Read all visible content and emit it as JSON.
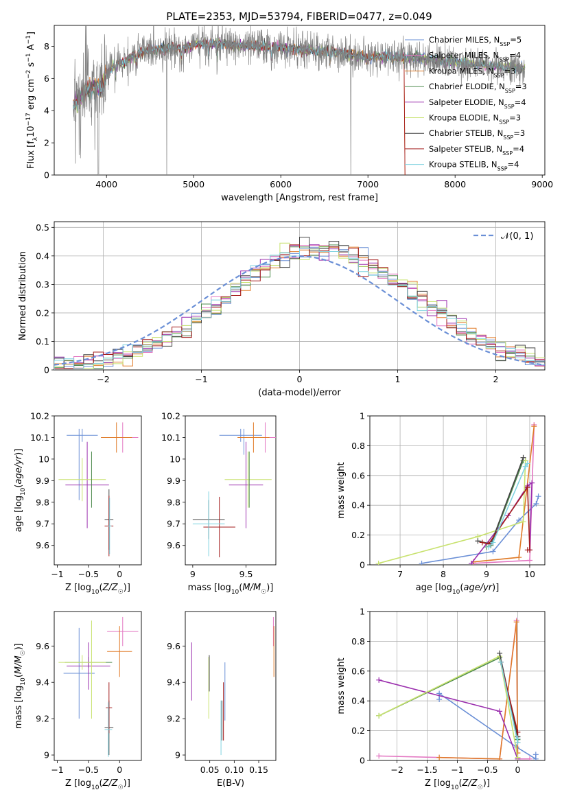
{
  "figure_title": "PLATE=2353, MJD=53794, FIBERID=0477, z=0.049",
  "colors": {
    "chabrier_miles": "#6a8fd6",
    "salpeter_miles": "#e377c2",
    "kroupa_miles": "#e07b28",
    "chabrier_elodie": "#4d8a4d",
    "salpeter_elodie": "#9b2fae",
    "kroupa_elodie": "#c8e26e",
    "chabrier_stelib": "#444444",
    "salpeter_stelib": "#a31b1b",
    "kroupa_stelib": "#7fd3e0",
    "data": "#808080"
  },
  "chart_data": [
    {
      "id": "spectrum",
      "type": "line",
      "title": "",
      "xlabel": "wavelength [Angstrom, rest frame]",
      "ylabel": "Flux [f_λ10^-17 erg cm^-2 s^-1 A^-1]",
      "xlim": [
        3400,
        9030
      ],
      "ylim": [
        0,
        9.3
      ],
      "xticks": [
        4000,
        5000,
        6000,
        7000,
        8000,
        9000
      ],
      "yticks": [
        0,
        2,
        4,
        6,
        8
      ],
      "legend_position": "right",
      "legend": [
        {
          "model": "Chabrier MILES",
          "nssp": "5",
          "color_key": "chabrier_miles"
        },
        {
          "model": "Salpeter MILES",
          "nssp": "4",
          "color_key": "salpeter_miles"
        },
        {
          "model": "Kroupa MILES",
          "nssp": "3",
          "color_key": "kroupa_miles"
        },
        {
          "model": "Chabrier ELODIE",
          "nssp": "3",
          "color_key": "chabrier_elodie"
        },
        {
          "model": "Salpeter ELODIE",
          "nssp": "4",
          "color_key": "salpeter_elodie"
        },
        {
          "model": "Kroupa ELODIE",
          "nssp": "3",
          "color_key": "kroupa_elodie"
        },
        {
          "model": "Chabrier STELIB",
          "nssp": "3",
          "color_key": "chabrier_stelib"
        },
        {
          "model": "Salpeter STELIB",
          "nssp": "4",
          "color_key": "salpeter_stelib"
        },
        {
          "model": "Kroupa STELIB",
          "nssp": "4",
          "color_key": "kroupa_stelib"
        }
      ],
      "continuum": {
        "wavelength": [
          3620,
          3700,
          3800,
          3900,
          4000,
          4100,
          4200,
          4300,
          4400,
          4500,
          4600,
          4700,
          4800,
          4900,
          5000,
          5200,
          5400,
          5600,
          5800,
          6000,
          6200,
          6400,
          6600,
          6800,
          7000,
          7200,
          7400,
          7600,
          7800,
          8000,
          8200,
          8400,
          8600,
          8800
        ],
        "flux": [
          4.3,
          4.9,
          5.4,
          5.4,
          6.3,
          6.9,
          7.0,
          7.4,
          7.6,
          7.8,
          7.8,
          7.9,
          7.9,
          7.9,
          8.1,
          8.2,
          8.1,
          8.0,
          8.0,
          7.9,
          7.8,
          7.7,
          7.7,
          7.5,
          7.3,
          7.4,
          7.3,
          7.3,
          7.1,
          7.0,
          6.9,
          6.8,
          6.7,
          6.6
        ]
      }
    },
    {
      "id": "residuals",
      "type": "line",
      "title": "",
      "xlabel": "(data-model)/error",
      "ylabel": "Normed distribution",
      "xlim": [
        -2.5,
        2.5
      ],
      "ylim": [
        0,
        0.52
      ],
      "xticks": [
        -2,
        -1,
        0,
        1,
        2
      ],
      "yticks": [
        0.0,
        0.1,
        0.2,
        0.3,
        0.4,
        0.5
      ],
      "grid": true,
      "legend_position": "top-right",
      "gaussian_label": "𝒩(0, 1)",
      "gaussian_sigma": 1.0
    },
    {
      "id": "age_vs_Z",
      "type": "scatter",
      "xlabel": "Z [log10(Z/Z☉)]",
      "ylabel": "age [log10(age/yr)]",
      "xlim": [
        -1.05,
        0.35
      ],
      "ylim": [
        9.51,
        10.2
      ],
      "xticks": [
        -1.0,
        -0.5,
        0.0
      ],
      "yticks": [
        9.6,
        9.7,
        9.8,
        9.9,
        10.0,
        10.1,
        10.2
      ],
      "points": [
        {
          "x": -0.6,
          "xerr": 0.25,
          "y": 10.11,
          "yerr": 0.03,
          "color_key": "chabrier_miles"
        },
        {
          "x": -0.65,
          "yerr_lo": 0.3,
          "yerr_hi": 0.03,
          "y": 10.11,
          "color_key": "chabrier_miles"
        },
        {
          "x": 0.05,
          "xerr": 0.25,
          "y": 10.1,
          "yerr": 0.07,
          "color_key": "salpeter_miles"
        },
        {
          "x": -0.05,
          "xerr": 0.25,
          "y": 10.1,
          "yerr": 0.07,
          "color_key": "kroupa_miles"
        },
        {
          "x": -0.52,
          "xerr": 0.35,
          "y": 9.88,
          "yerr": 0.2,
          "color_key": "salpeter_elodie"
        },
        {
          "x": -0.6,
          "xerr": 0.38,
          "y": 9.905,
          "yerr": 0.1,
          "color_key": "kroupa_elodie"
        },
        {
          "x": -0.45,
          "y": 9.905,
          "yerr": 0.13,
          "color_key": "chabrier_elodie"
        },
        {
          "x": -0.17,
          "xerr": 0.07,
          "y": 9.72,
          "yerr": 0.14,
          "color_key": "chabrier_stelib"
        },
        {
          "x": -0.17,
          "xerr": 0.07,
          "y": 9.69,
          "yerr": 0.14,
          "color_key": "salpeter_stelib"
        },
        {
          "x": -0.16,
          "xerr": 0.03,
          "y": 9.69,
          "yerr": 0.13,
          "color_key": "kroupa_stelib"
        }
      ]
    },
    {
      "id": "age_vs_mass",
      "type": "scatter",
      "xlabel": "mass [log10(M/M☉)]",
      "ylabel": "",
      "xlim": [
        8.93,
        9.78
      ],
      "ylim": [
        9.51,
        10.2
      ],
      "xticks": [
        9.0,
        9.5
      ],
      "yticks": [
        9.6,
        9.7,
        9.8,
        9.9,
        10.0,
        10.1,
        10.2
      ],
      "points": [
        {
          "x": 9.45,
          "xerr": 0.2,
          "y": 10.11,
          "yerr": 0.03,
          "color_key": "chabrier_miles"
        },
        {
          "x": 9.48,
          "y": 10.08,
          "yerr": 0.06,
          "color_key": "chabrier_miles"
        },
        {
          "x": 9.68,
          "xerr": 0.13,
          "y": 10.1,
          "yerr": 0.07,
          "color_key": "salpeter_miles"
        },
        {
          "x": 9.57,
          "xerr": 0.15,
          "y": 10.1,
          "yerr": 0.07,
          "color_key": "kroupa_miles"
        },
        {
          "x": 9.5,
          "xerr": 0.16,
          "y": 9.88,
          "yerr": 0.2,
          "color_key": "salpeter_elodie"
        },
        {
          "x": 9.52,
          "xerr": 0.22,
          "y": 9.905,
          "yerr": 0.13,
          "color_key": "kroupa_elodie"
        },
        {
          "x": 9.53,
          "y": 9.905,
          "yerr": 0.13,
          "color_key": "chabrier_elodie"
        },
        {
          "x": 9.15,
          "xerr": 0.15,
          "y": 9.72,
          "yerr": 0.09,
          "color_key": "chabrier_stelib"
        },
        {
          "x": 9.25,
          "xerr": 0.15,
          "y": 9.685,
          "yerr": 0.14,
          "color_key": "salpeter_stelib"
        },
        {
          "x": 9.15,
          "xerr": 0.15,
          "y": 9.7,
          "yerr": 0.15,
          "color_key": "kroupa_stelib"
        }
      ]
    },
    {
      "id": "weight_vs_age",
      "type": "line",
      "xlabel": "age [log10(age/yr)]",
      "ylabel": "mass weight",
      "xlim": [
        6.3,
        10.35
      ],
      "ylim": [
        0,
        1.0
      ],
      "xticks": [
        7,
        8,
        9,
        10
      ],
      "yticks": [
        0.0,
        0.2,
        0.4,
        0.6,
        0.8,
        1.0
      ],
      "grid": true,
      "series": [
        {
          "color_key": "chabrier_miles",
          "x": [
            7.5,
            9.15,
            9.75,
            10.15,
            10.2
          ],
          "y": [
            0.01,
            0.09,
            0.3,
            0.41,
            0.46
          ]
        },
        {
          "color_key": "salpeter_miles",
          "x": [
            8.7,
            10.0,
            10.1
          ],
          "y": [
            0.01,
            0.03,
            0.94
          ]
        },
        {
          "color_key": "kroupa_miles",
          "x": [
            8.7,
            9.75,
            10.1
          ],
          "y": [
            0.02,
            0.05,
            0.93
          ]
        },
        {
          "color_key": "chabrier_elodie",
          "x": [
            9.0,
            9.1,
            9.85,
            9.9
          ],
          "y": [
            0.12,
            0.13,
            0.7,
            0.7
          ]
        },
        {
          "color_key": "salpeter_elodie",
          "x": [
            8.65,
            9.5,
            9.95,
            10.05,
            10.0
          ],
          "y": [
            0.01,
            0.33,
            0.53,
            0.55,
            0.1
          ]
        },
        {
          "color_key": "kroupa_elodie",
          "x": [
            6.5,
            8.8,
            9.85,
            9.9
          ],
          "y": [
            0.01,
            0.19,
            0.29,
            0.7
          ]
        },
        {
          "color_key": "chabrier_stelib",
          "x": [
            8.8,
            9.1,
            9.85
          ],
          "y": [
            0.16,
            0.14,
            0.72
          ]
        },
        {
          "color_key": "salpeter_stelib",
          "x": [
            8.9,
            9.05,
            9.95,
            10.0,
            9.95
          ],
          "y": [
            0.15,
            0.14,
            0.52,
            0.1,
            0.1
          ]
        },
        {
          "color_key": "kroupa_stelib",
          "x": [
            9.05,
            9.15,
            9.9,
            9.95
          ],
          "y": [
            0.12,
            0.15,
            0.66,
            0.68
          ]
        }
      ]
    },
    {
      "id": "mass_vs_Z",
      "type": "scatter",
      "xlabel": "Z [log10(Z/Z☉)]",
      "ylabel": "mass [log10(M/M☉)]",
      "xlim": [
        -1.05,
        0.35
      ],
      "ylim": [
        8.97,
        9.79
      ],
      "xticks": [
        -1.0,
        -0.5,
        0.0
      ],
      "yticks": [
        9.0,
        9.2,
        9.4,
        9.6
      ],
      "points": [
        {
          "x": -0.65,
          "xerr": 0.25,
          "y": 9.45,
          "yerr": 0.25,
          "color_key": "chabrier_miles"
        },
        {
          "x": 0.05,
          "xerr": 0.25,
          "y": 9.68,
          "yerr": 0.08,
          "color_key": "salpeter_miles"
        },
        {
          "x": 0.0,
          "xerr": 0.2,
          "y": 9.57,
          "yerr": 0.14,
          "color_key": "kroupa_miles"
        },
        {
          "x": -0.5,
          "xerr": 0.38,
          "y": 9.51,
          "yerr": 0.03,
          "color_key": "chabrier_elodie"
        },
        {
          "x": -0.5,
          "xerr": 0.35,
          "y": 9.49,
          "yerr": 0.13,
          "color_key": "salpeter_elodie"
        },
        {
          "x": -0.6,
          "xerr": 0.38,
          "y": 9.51,
          "yerr": 0.04,
          "color_key": "kroupa_elodie"
        },
        {
          "x": -0.45,
          "y": 9.47,
          "yerr": 0.27,
          "color_key": "kroupa_elodie"
        },
        {
          "x": -0.17,
          "xerr": 0.07,
          "y": 9.15,
          "yerr": 0.15,
          "color_key": "chabrier_stelib"
        },
        {
          "x": -0.17,
          "xerr": 0.05,
          "y": 9.26,
          "yerr": 0.14,
          "color_key": "salpeter_stelib"
        },
        {
          "x": -0.18,
          "xerr": 0.06,
          "y": 9.14,
          "yerr": 0.15,
          "color_key": "kroupa_stelib"
        }
      ]
    },
    {
      "id": "mass_vs_ebv",
      "type": "scatter",
      "xlabel": "E(B-V)",
      "ylabel": "",
      "xlim": [
        0.0,
        0.185
      ],
      "ylim": [
        8.97,
        9.79
      ],
      "xticks": [
        0.05,
        0.1,
        0.15
      ],
      "yticks": [
        9.0,
        9.2,
        9.4,
        9.6
      ],
      "points": [
        {
          "x": 0.013,
          "y": 9.46,
          "yerr": 0.16,
          "color_key": "salpeter_elodie"
        },
        {
          "x": 0.048,
          "y": 9.37,
          "yerr": 0.17,
          "color_key": "kroupa_elodie"
        },
        {
          "x": 0.049,
          "y": 9.45,
          "yerr": 0.1,
          "color_key": "chabrier_stelib"
        },
        {
          "x": 0.073,
          "y": 9.15,
          "yerr": 0.15,
          "color_key": "kroupa_stelib"
        },
        {
          "x": 0.075,
          "y": 9.19,
          "yerr": 0.11,
          "color_key": "chabrier_stelib"
        },
        {
          "x": 0.078,
          "y": 9.24,
          "yerr": 0.16,
          "color_key": "salpeter_stelib"
        },
        {
          "x": 0.081,
          "y": 9.35,
          "yerr": 0.16,
          "color_key": "chabrier_miles"
        },
        {
          "x": 0.18,
          "y": 9.68,
          "yerr": 0.08,
          "color_key": "salpeter_miles"
        },
        {
          "x": 0.181,
          "y": 9.57,
          "yerr": 0.14,
          "color_key": "kroupa_miles"
        }
      ]
    },
    {
      "id": "weight_vs_Z",
      "type": "line",
      "xlabel": "Z [log10(Z/Z☉)]",
      "ylabel": "mass weight",
      "xlim": [
        -2.45,
        0.45
      ],
      "ylim": [
        0,
        1.0
      ],
      "xticks": [
        -2.0,
        -1.5,
        -1.0,
        -0.5,
        0.0
      ],
      "yticks": [
        0.0,
        0.2,
        0.4,
        0.6,
        0.8,
        1.0
      ],
      "grid": true,
      "series": [
        {
          "color_key": "chabrier_miles",
          "x": [
            -1.3,
            -1.3,
            -0.02,
            0.3,
            0.3
          ],
          "y": [
            0.41,
            0.45,
            0.09,
            0.01,
            0.04
          ]
        },
        {
          "color_key": "salpeter_miles",
          "x": [
            -2.3,
            -0.3,
            -0.02,
            0.0,
            0.2
          ],
          "y": [
            0.03,
            0.01,
            0.94,
            0.01,
            0.01
          ]
        },
        {
          "color_key": "kroupa_miles",
          "x": [
            -1.3,
            -0.3,
            -0.02,
            0.0
          ],
          "y": [
            0.02,
            0.01,
            0.93,
            0.05
          ]
        },
        {
          "color_key": "chabrier_elodie",
          "x": [
            -2.3,
            -0.3,
            0.0
          ],
          "y": [
            0.3,
            0.69,
            0.14
          ]
        },
        {
          "color_key": "salpeter_elodie",
          "x": [
            -2.3,
            -0.3,
            0.0
          ],
          "y": [
            0.54,
            0.33,
            0.01
          ]
        },
        {
          "color_key": "kroupa_elodie",
          "x": [
            -2.3,
            -0.3,
            0.0
          ],
          "y": [
            0.3,
            0.7,
            0.02
          ]
        },
        {
          "color_key": "chabrier_stelib",
          "x": [
            -0.3,
            0.0,
            0.0
          ],
          "y": [
            0.72,
            0.16,
            0.12
          ]
        },
        {
          "color_key": "salpeter_stelib",
          "x": [
            -0.28,
            0.0,
            0.0
          ],
          "y": [
            0.66,
            0.19,
            0.15
          ]
        },
        {
          "color_key": "kroupa_stelib",
          "x": [
            -0.28,
            0.0,
            0.0
          ],
          "y": [
            0.66,
            0.12,
            0.15
          ]
        }
      ]
    }
  ]
}
